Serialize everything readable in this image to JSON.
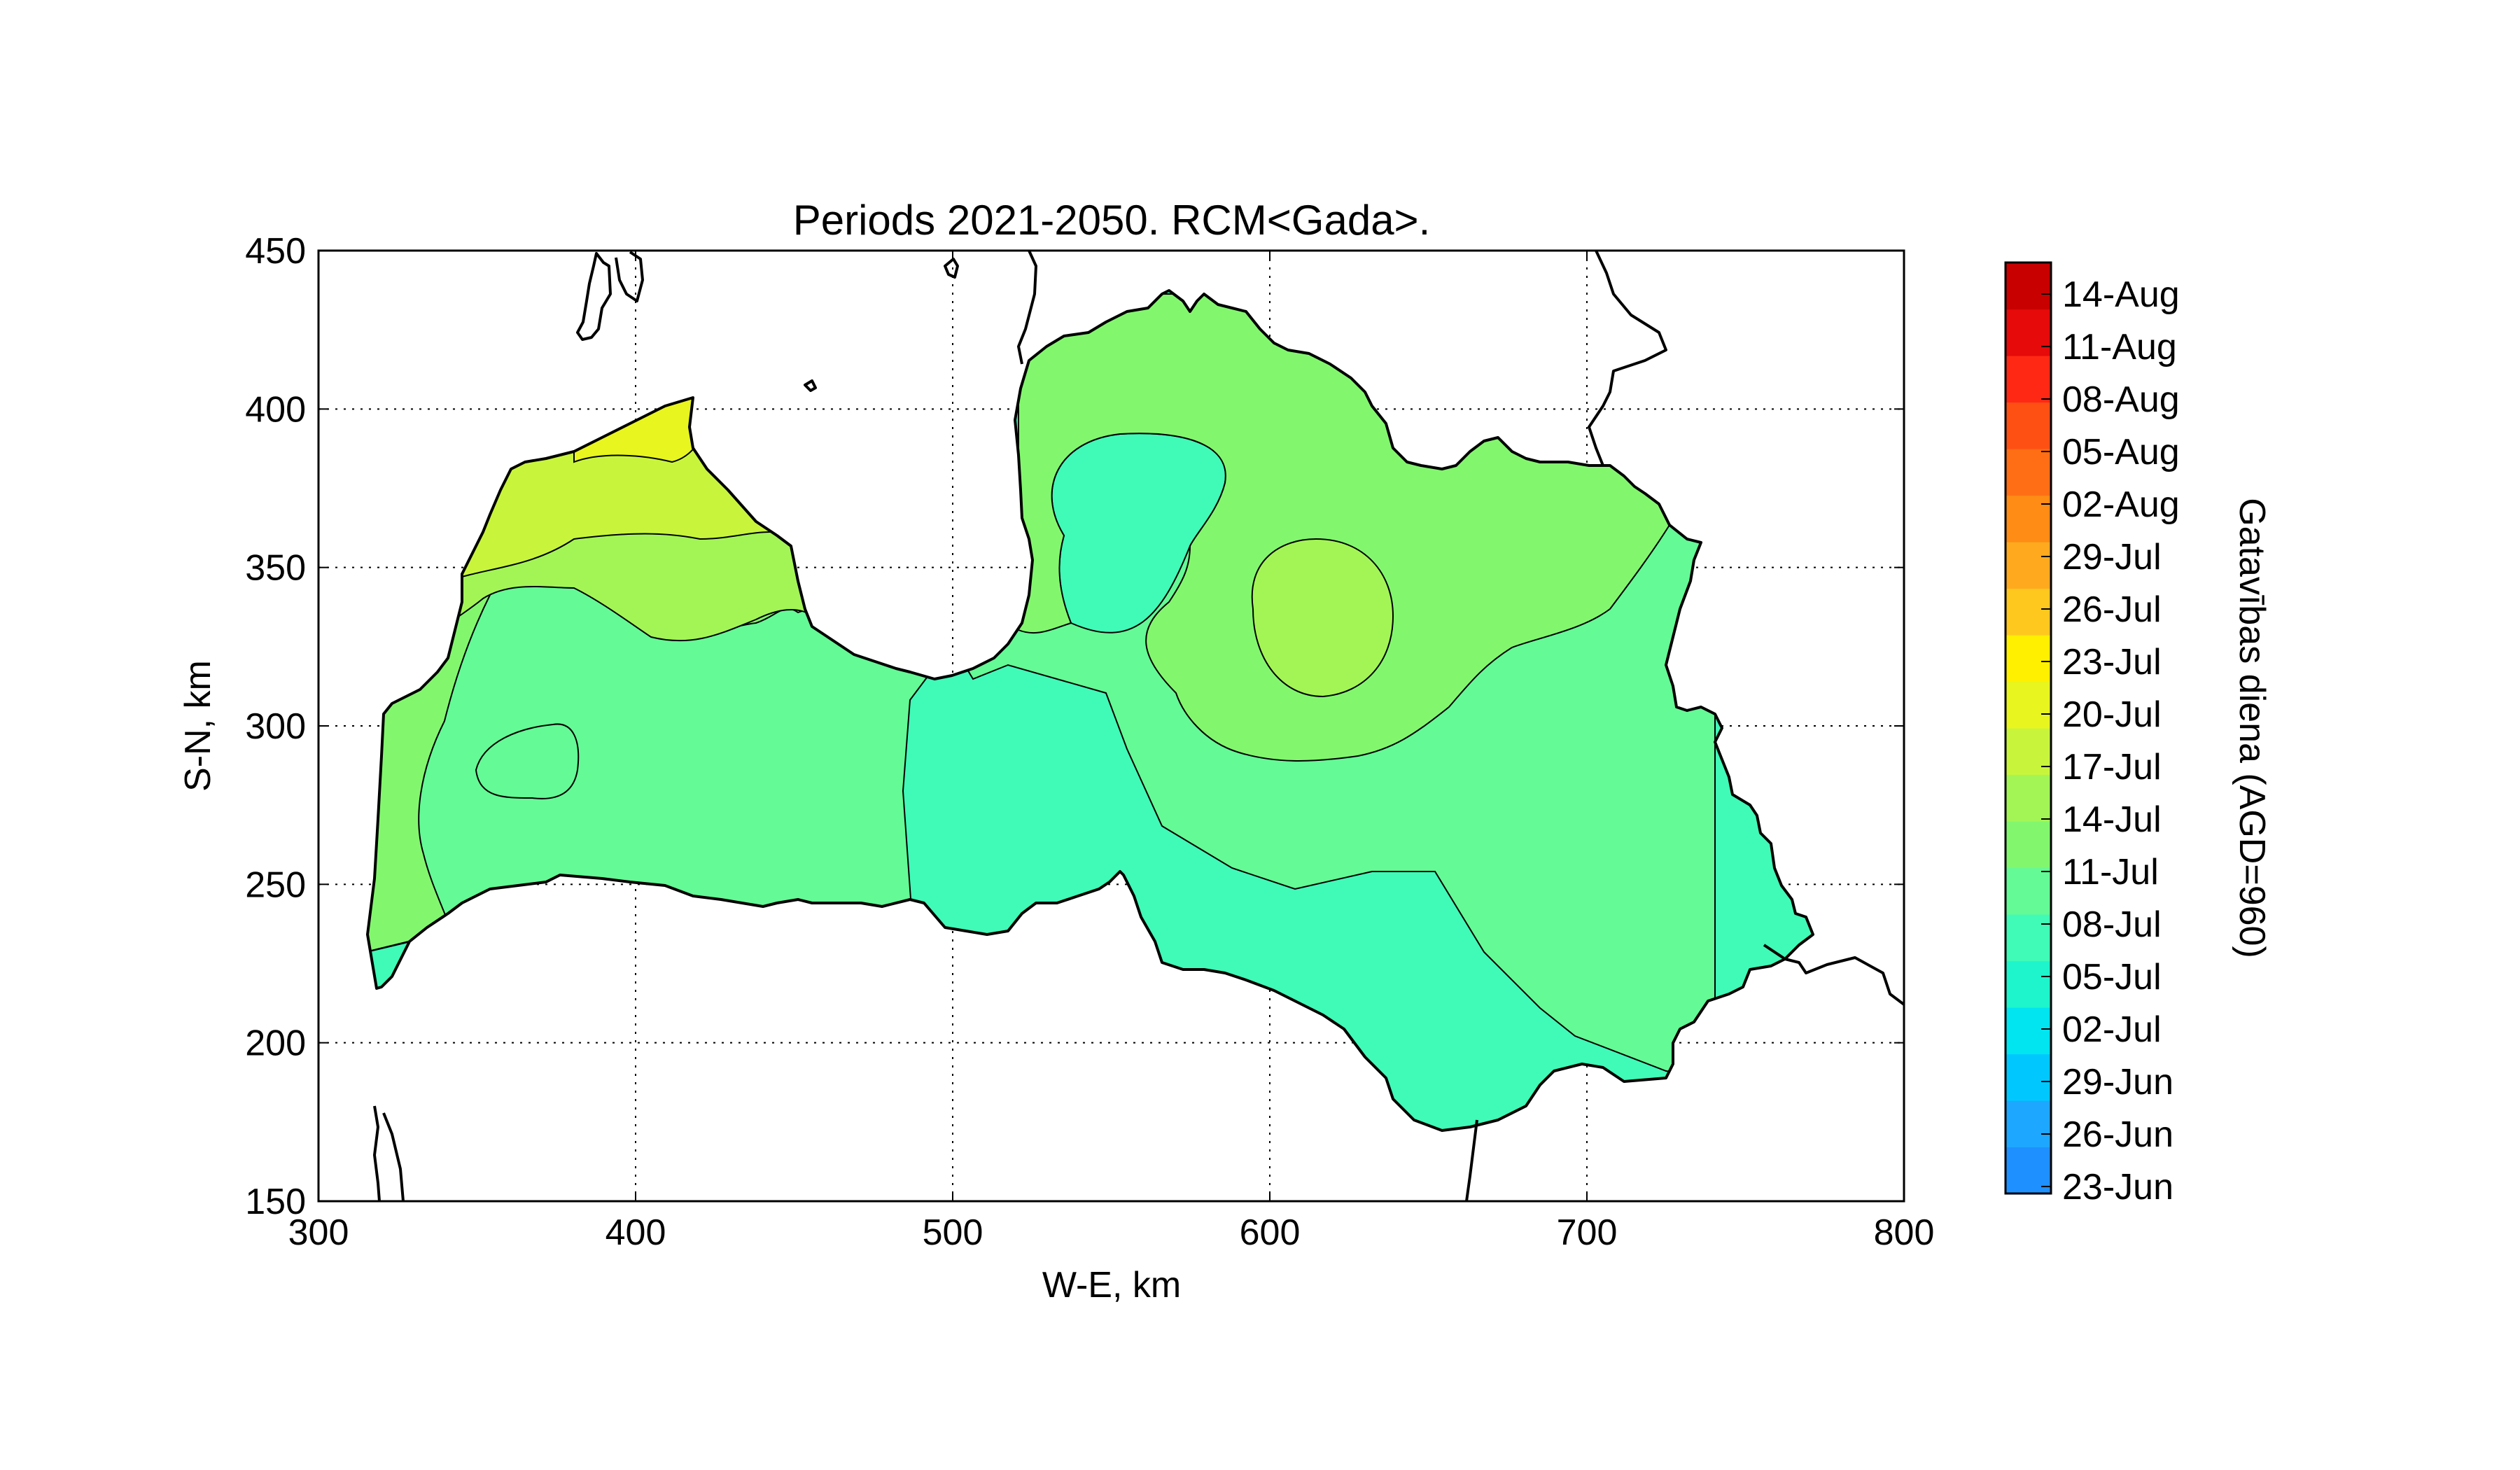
{
  "title": "Periods 2021-2050. RCM<Gada>.",
  "chart_data": {
    "type": "contour-map",
    "title": "Periods 2021-2050. RCM<Gada>.",
    "xlabel": "W-E, km",
    "ylabel": "S-N, km",
    "xlim": [
      300,
      800
    ],
    "ylim": [
      150,
      450
    ],
    "xticks": [
      300,
      400,
      500,
      600,
      700,
      800
    ],
    "yticks": [
      150,
      200,
      250,
      300,
      350,
      400,
      450
    ],
    "grid": "dotted",
    "colorbar": {
      "label": "Gatavības diena (AGD=960)",
      "ticks": [
        "23-Jun",
        "26-Jun",
        "29-Jun",
        "02-Jul",
        "05-Jul",
        "08-Jul",
        "11-Jul",
        "14-Jul",
        "17-Jul",
        "20-Jul",
        "23-Jul",
        "26-Jul",
        "29-Jul",
        "02-Aug",
        "05-Aug",
        "08-Aug",
        "11-Aug",
        "14-Aug"
      ],
      "colors": [
        "#1e90ff",
        "#1ea7ff",
        "#00c8ff",
        "#00e5f0",
        "#1ef5cc",
        "#40fab8",
        "#64fa96",
        "#82f76e",
        "#a3f556",
        "#c8f53c",
        "#e8f51e",
        "#fff000",
        "#ffc81e",
        "#ffaa1e",
        "#ff8c14",
        "#ff6e14",
        "#ff5014",
        "#ff2814",
        "#e60a0a",
        "#c80000"
      ]
    },
    "regions": [
      {
        "date_class": "08-Jul",
        "color": "#40fab8"
      },
      {
        "date_class": "11-Jul",
        "color": "#64fa96"
      },
      {
        "date_class": "14-Jul",
        "color": "#82f76e"
      },
      {
        "date_class": "17-Jul",
        "color": "#a3f556"
      },
      {
        "date_class": "20-Jul",
        "color": "#c8f53c"
      },
      {
        "date_class": "23-Jul",
        "color": "#e8f51e"
      }
    ]
  }
}
